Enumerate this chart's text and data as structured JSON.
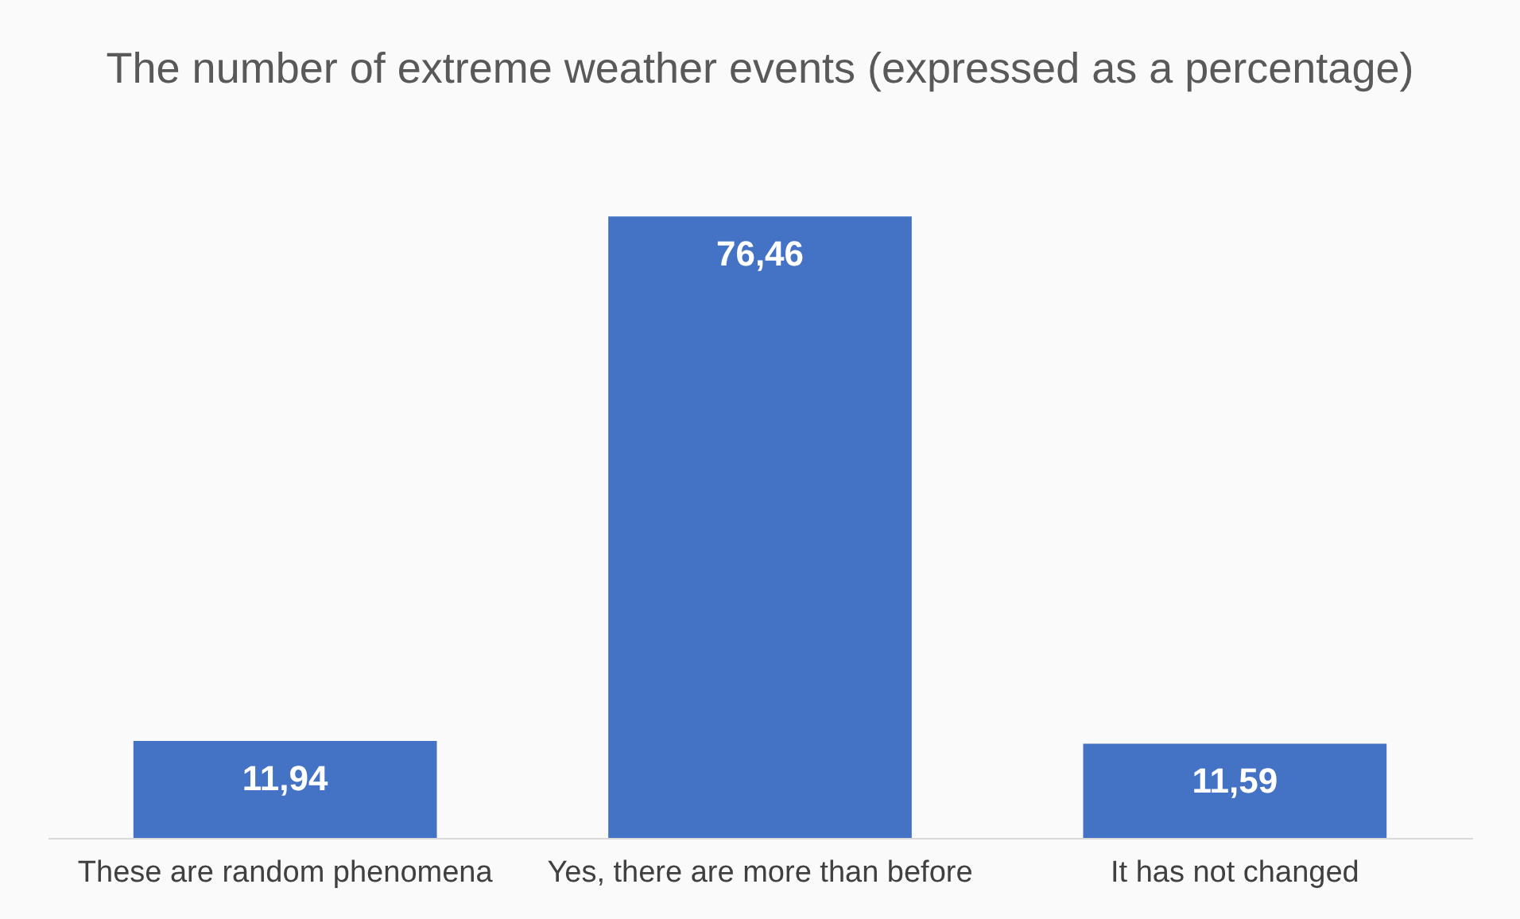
{
  "chart_data": {
    "type": "bar",
    "title": "The number of extreme weather events (expressed as a percentage)",
    "categories": [
      "These are random phenomena",
      "Yes, there are more than before",
      "It has not changed"
    ],
    "values": [
      11.94,
      76.46,
      11.59
    ],
    "value_labels": [
      "11,94",
      "76,46",
      "11,59"
    ],
    "color": "#4472c4"
  }
}
